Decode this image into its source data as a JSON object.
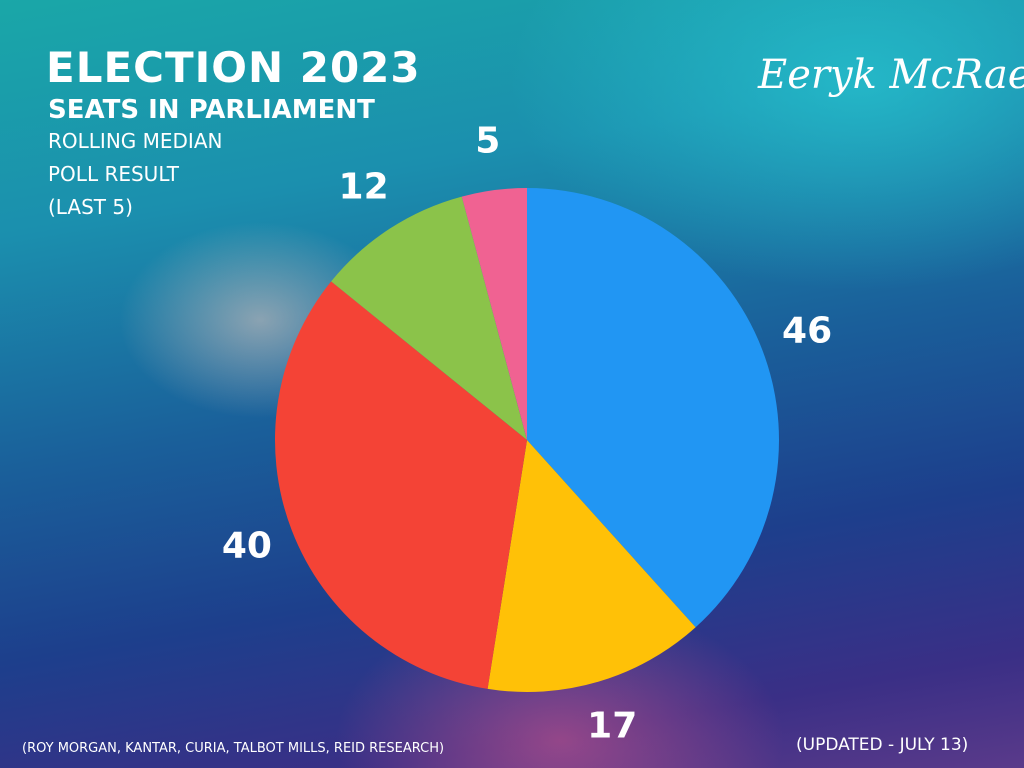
{
  "chart_data": {
    "type": "pie",
    "title": "ELECTION 2023",
    "subtitle": "SEATS IN PARLIAMENT",
    "annotation_lines": [
      "ROLLING MEDIAN",
      "POLL RESULT",
      "(LAST 5)"
    ],
    "signature": "Eeryk McRae",
    "source": "(ROY MORGAN, KANTAR, CURIA, TALBOT MILLS, REID RESEARCH)",
    "updated": "(UPDATED - JULY 13)",
    "values": [
      46,
      17,
      40,
      12,
      5
    ],
    "colors": [
      "#2196f3",
      "#ffc107",
      "#f44336",
      "#8bc34a",
      "#f06292"
    ]
  }
}
